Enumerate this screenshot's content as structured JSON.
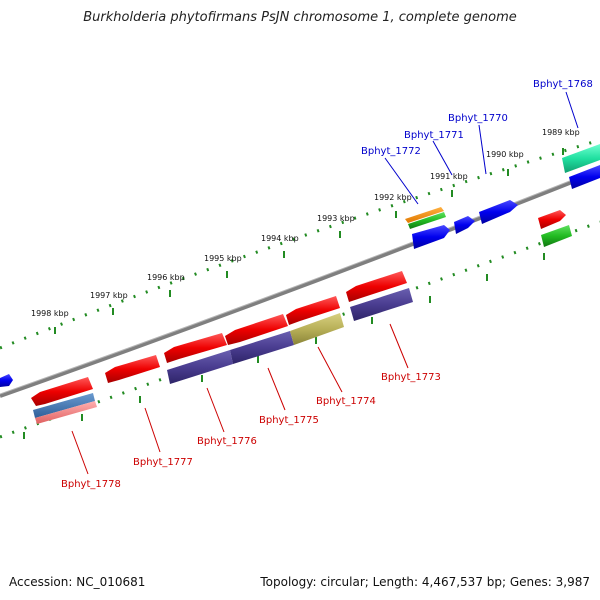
{
  "title": "Burkholderia phytofirmans PsJN chromosome 1, complete genome",
  "footer": {
    "accession": "Accession: NC_010681",
    "summary": "Topology: circular; Length: 4,467,537 bp; Genes: 3,987"
  },
  "colors": {
    "backbone": "#808080",
    "tick": "#228b22",
    "plus_label": "#0000cc",
    "minus_label": "#cc0000"
  },
  "scale": {
    "unit": "kbp",
    "ticks": [
      {
        "kbp": 1998,
        "label": "1998 kbp"
      },
      {
        "kbp": 1997,
        "label": "1997 kbp"
      },
      {
        "kbp": 1996,
        "label": "1996 kbp"
      },
      {
        "kbp": 1995,
        "label": "1995 kbp"
      },
      {
        "kbp": 1994,
        "label": "1994 kbp"
      },
      {
        "kbp": 1993,
        "label": "1993 kbp"
      },
      {
        "kbp": 1992,
        "label": "1992 kbp"
      },
      {
        "kbp": 1991,
        "label": "1991 kbp"
      },
      {
        "kbp": 1990,
        "label": "1990 kbp"
      },
      {
        "kbp": 1989,
        "label": "1989 kbp"
      }
    ]
  },
  "gene_labels": [
    {
      "name": "Bphyt_1768",
      "strand": "plus"
    },
    {
      "name": "Bphyt_1770",
      "strand": "plus"
    },
    {
      "name": "Bphyt_1771",
      "strand": "plus"
    },
    {
      "name": "Bphyt_1772",
      "strand": "plus"
    },
    {
      "name": "Bphyt_1773",
      "strand": "minus"
    },
    {
      "name": "Bphyt_1774",
      "strand": "minus"
    },
    {
      "name": "Bphyt_1775",
      "strand": "minus"
    },
    {
      "name": "Bphyt_1776",
      "strand": "minus"
    },
    {
      "name": "Bphyt_1777",
      "strand": "minus"
    },
    {
      "name": "Bphyt_1778",
      "strand": "minus"
    }
  ]
}
